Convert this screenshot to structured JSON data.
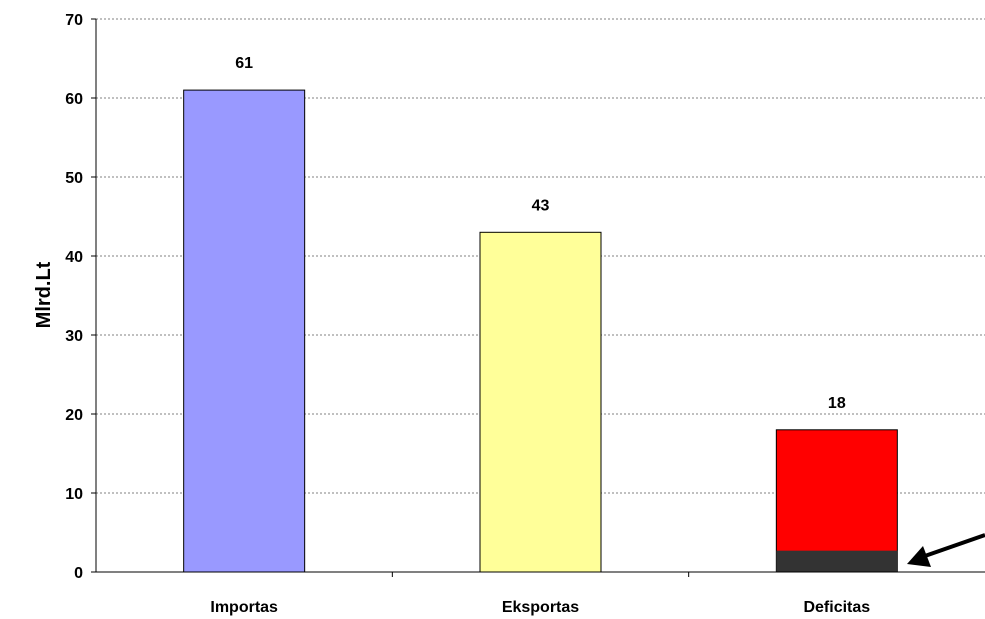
{
  "chart_data": {
    "type": "bar",
    "title": "",
    "xlabel": "",
    "ylabel": "Mlrd.Lt",
    "categories": [
      "Importas",
      "Eksportas",
      "Deficitas"
    ],
    "values": [
      61,
      43,
      18
    ],
    "data_labels": [
      "61",
      "43",
      "18"
    ],
    "colors": [
      "#9999ff",
      "#ffff99",
      "#ff0000"
    ],
    "highlight": {
      "category": "Deficitas",
      "value": 2.7,
      "color": "#333333",
      "annotation": "arrow"
    },
    "ylim": [
      0,
      70
    ],
    "yticks": [
      0,
      10,
      20,
      30,
      40,
      50,
      60,
      70
    ],
    "grid": true,
    "legend": "none"
  }
}
